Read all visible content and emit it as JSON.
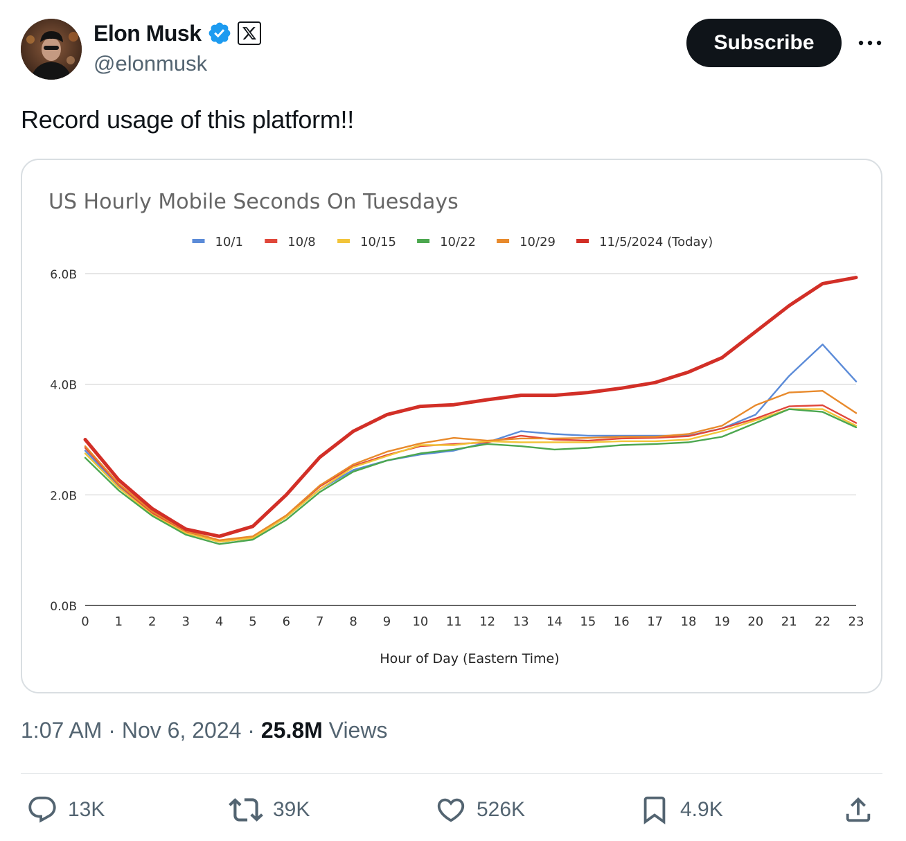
{
  "author": {
    "name": "Elon Musk",
    "handle": "@elonmusk"
  },
  "icons": {
    "verified": "verified-badge-icon",
    "affiliate": "x-logo-icon",
    "more": "more-icon",
    "reply": "reply-icon",
    "repost": "repost-icon",
    "like": "like-icon",
    "bookmark": "bookmark-icon",
    "share": "share-icon"
  },
  "colors": {
    "verified": "#1d9bf0",
    "subscribe_bg": "#0f1419",
    "muted_text": "#536471"
  },
  "subscribe_label": "Subscribe",
  "tweet": {
    "text": "Record usage of this platform!!"
  },
  "meta": {
    "time": "1:07 AM",
    "date": "Nov 6, 2024",
    "views": "25.8M",
    "views_label": "Views"
  },
  "actions": {
    "replies": "13K",
    "reposts": "39K",
    "likes": "526K",
    "bookmarks": "4.9K"
  },
  "chart_data": {
    "type": "line",
    "title": "US Hourly Mobile Seconds On Tuesdays",
    "xlabel": "Hour of Day (Eastern Time)",
    "ylabel": "",
    "x": [
      0,
      1,
      2,
      3,
      4,
      5,
      6,
      7,
      8,
      9,
      10,
      11,
      12,
      13,
      14,
      15,
      16,
      17,
      18,
      19,
      20,
      21,
      22,
      23
    ],
    "ylim": [
      0,
      6
    ],
    "yticks": [
      {
        "value": 0,
        "label": "0.0B"
      },
      {
        "value": 2,
        "label": "2.0B"
      },
      {
        "value": 4,
        "label": "4.0B"
      },
      {
        "value": 6,
        "label": "6.0B"
      }
    ],
    "grid": true,
    "legend_position": "top",
    "series": [
      {
        "name": "10/1",
        "color": "#5b8bd8",
        "emphasis": false,
        "values": [
          2.8,
          2.15,
          1.65,
          1.32,
          1.15,
          1.22,
          1.6,
          2.1,
          2.45,
          2.62,
          2.73,
          2.8,
          2.95,
          3.15,
          3.1,
          3.07,
          3.07,
          3.07,
          3.07,
          3.2,
          3.45,
          4.15,
          4.72,
          4.05
        ]
      },
      {
        "name": "10/8",
        "color": "#e0473a",
        "emphasis": false,
        "values": [
          2.85,
          2.18,
          1.67,
          1.33,
          1.16,
          1.24,
          1.62,
          2.15,
          2.52,
          2.72,
          2.88,
          2.92,
          2.95,
          3.07,
          3.0,
          2.98,
          3.02,
          3.03,
          3.06,
          3.2,
          3.38,
          3.6,
          3.62,
          3.3
        ]
      },
      {
        "name": "10/15",
        "color": "#f2c43a",
        "emphasis": false,
        "values": [
          2.75,
          2.13,
          1.64,
          1.31,
          1.15,
          1.22,
          1.6,
          2.1,
          2.5,
          2.7,
          2.9,
          2.9,
          2.97,
          2.95,
          2.95,
          2.95,
          2.97,
          2.97,
          3.0,
          3.15,
          3.35,
          3.55,
          3.55,
          3.25
        ]
      },
      {
        "name": "10/22",
        "color": "#4ca74f",
        "emphasis": false,
        "values": [
          2.67,
          2.08,
          1.62,
          1.28,
          1.11,
          1.19,
          1.55,
          2.05,
          2.42,
          2.62,
          2.75,
          2.82,
          2.92,
          2.88,
          2.82,
          2.85,
          2.9,
          2.92,
          2.95,
          3.05,
          3.3,
          3.55,
          3.5,
          3.22
        ]
      },
      {
        "name": "10/29",
        "color": "#e88a2c",
        "emphasis": false,
        "values": [
          2.88,
          2.2,
          1.7,
          1.35,
          1.18,
          1.25,
          1.63,
          2.17,
          2.55,
          2.78,
          2.93,
          3.03,
          2.98,
          3.02,
          3.02,
          3.03,
          3.05,
          3.05,
          3.1,
          3.25,
          3.62,
          3.85,
          3.88,
          3.48
        ]
      },
      {
        "name": "11/5/2024 (Today)",
        "color": "#d22f27",
        "emphasis": true,
        "values": [
          3.0,
          2.27,
          1.75,
          1.38,
          1.25,
          1.43,
          2.0,
          2.68,
          3.15,
          3.45,
          3.6,
          3.63,
          3.72,
          3.8,
          3.8,
          3.85,
          3.93,
          4.03,
          4.22,
          4.48,
          4.95,
          5.42,
          5.82,
          5.93
        ]
      }
    ]
  }
}
